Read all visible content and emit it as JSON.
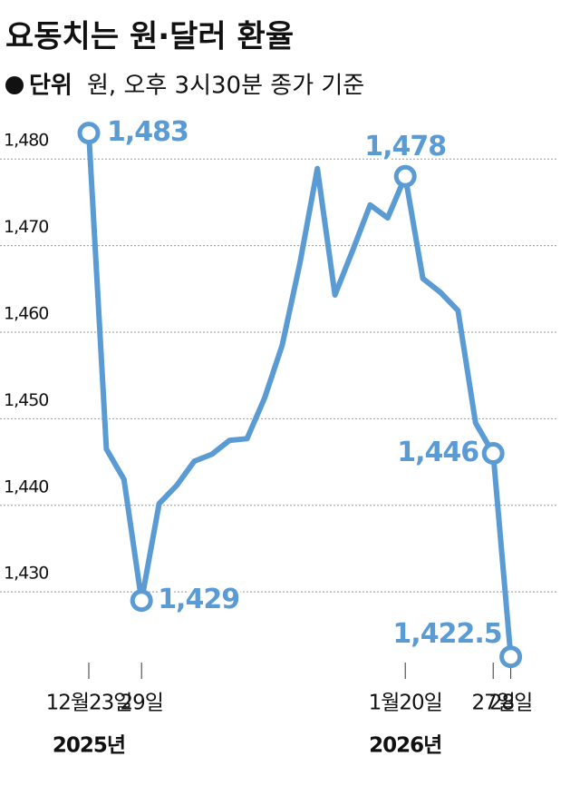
{
  "chart_data": {
    "type": "line",
    "title": "요동치는 원·달러 환율",
    "unit_label": "단위",
    "subtitle": "원, 오후 3시30분 종가 기준",
    "categories": [
      "12월23일",
      null,
      null,
      "29일",
      null,
      null,
      null,
      null,
      null,
      null,
      null,
      null,
      null,
      null,
      null,
      null,
      null,
      null,
      "1월20일",
      null,
      null,
      null,
      null,
      "27일",
      "28일"
    ],
    "year_labels": [
      {
        "index": 0,
        "label": "2025년"
      },
      {
        "index": 18,
        "label": "2026년"
      }
    ],
    "series": [
      {
        "name": "원·달러 환율",
        "color": "#5a9bd4",
        "values": [
          1483,
          1446.5,
          1443,
          1429,
          1440.2,
          1442.3,
          1445.1,
          1445.9,
          1447.5,
          1447.7,
          1452.4,
          1458.5,
          1467.9,
          1478.9,
          1464.3,
          1469.4,
          1474.7,
          1473.2,
          1478,
          1466.2,
          1464.6,
          1462.5,
          1449.5,
          1446,
          1422.5
        ],
        "value_labels": [
          "1,483",
          null,
          null,
          "1,429",
          null,
          null,
          null,
          null,
          null,
          null,
          null,
          null,
          null,
          null,
          null,
          null,
          null,
          null,
          "1,478",
          null,
          null,
          null,
          null,
          "1,446",
          "1,422.5"
        ]
      }
    ],
    "ylim": [
      1421,
      1486
    ],
    "yticks": [
      {
        "value": 1430,
        "label": "1,430"
      },
      {
        "value": 1440,
        "label": "1,440"
      },
      {
        "value": 1450,
        "label": "1,450"
      },
      {
        "value": 1460,
        "label": "1,460"
      },
      {
        "value": 1470,
        "label": "1,470"
      },
      {
        "value": 1480,
        "label": "1,480"
      }
    ],
    "grid": true
  }
}
